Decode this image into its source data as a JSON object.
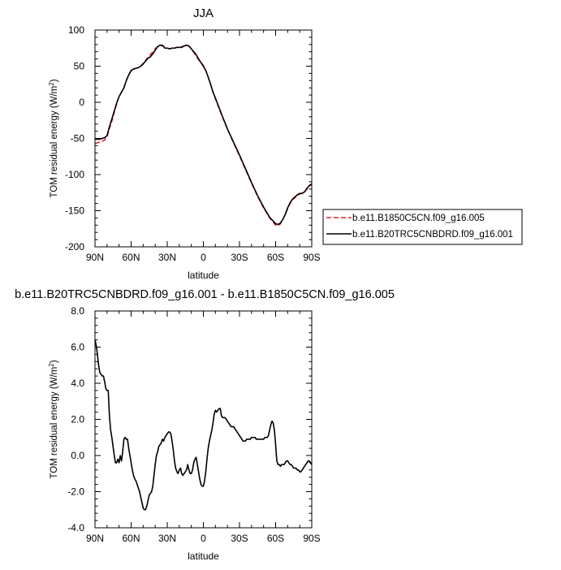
{
  "chart_data": [
    {
      "type": "line",
      "title": "JJA",
      "xlabel": "latitude",
      "ylabel": "TOM residual energy (W/m",
      "ylabel_sup": "2",
      "ylabel_close": ")",
      "xlim": [
        90,
        -90
      ],
      "ylim": [
        -200,
        100
      ],
      "xticks": [
        90,
        60,
        30,
        0,
        -30,
        -60,
        -90
      ],
      "xtick_labels": [
        "90N",
        "60N",
        "30N",
        "0",
        "30S",
        "60S",
        "90S"
      ],
      "yticks": [
        -200,
        -150,
        -100,
        -50,
        0,
        50,
        100
      ],
      "ytick_labels": [
        "-200",
        "-150",
        "-100",
        "-50",
        "0",
        "50",
        "100"
      ],
      "grid": false,
      "legend_position": "right",
      "series": [
        {
          "name": "b.e11.B1850C5CN.f09_g16.005",
          "color": "#e8242c",
          "style": "dashed",
          "x": [
            90,
            88,
            86,
            84,
            82,
            80,
            78,
            76,
            74,
            72,
            70,
            68,
            66,
            64,
            62,
            60,
            58,
            56,
            54,
            52,
            50,
            48,
            46,
            44,
            42,
            40,
            38,
            36,
            34,
            32,
            30,
            28,
            26,
            24,
            22,
            20,
            18,
            16,
            14,
            12,
            10,
            8,
            6,
            4,
            2,
            0,
            -2,
            -4,
            -6,
            -8,
            -10,
            -15,
            -20,
            -25,
            -30,
            -35,
            -40,
            -45,
            -50,
            -55,
            -60,
            -62,
            -64,
            -66,
            -68,
            -70,
            -72,
            -74,
            -76,
            -78,
            -80,
            -82,
            -84,
            -86,
            -88,
            -90
          ],
          "y": [
            -57,
            -56,
            -55,
            -54,
            -52,
            -48,
            -36,
            -26,
            -14,
            -2,
            8,
            14,
            20,
            30,
            38,
            43,
            46,
            47,
            48,
            50,
            54,
            58,
            62,
            66,
            70,
            74,
            77,
            79,
            78,
            76,
            75,
            74,
            75,
            75,
            76,
            76,
            77,
            78,
            79,
            78,
            74,
            69,
            64,
            59,
            55,
            51,
            44,
            35,
            25,
            14,
            5,
            -17,
            -37,
            -56,
            -74,
            -93,
            -112,
            -130,
            -146,
            -160,
            -170,
            -171,
            -168,
            -162,
            -155,
            -147,
            -140,
            -135,
            -132,
            -129,
            -127,
            -126,
            -124,
            -120,
            -116,
            -114
          ]
        },
        {
          "name": "b.e11.B20TRC5CNBDRD.f09_g16.001",
          "color": "#000000",
          "style": "solid",
          "x": [
            90,
            88,
            86,
            84,
            82,
            80,
            78,
            76,
            74,
            72,
            70,
            68,
            66,
            64,
            62,
            60,
            58,
            56,
            54,
            52,
            50,
            48,
            46,
            44,
            42,
            40,
            38,
            36,
            34,
            32,
            30,
            28,
            26,
            24,
            22,
            20,
            18,
            16,
            14,
            12,
            10,
            8,
            6,
            4,
            2,
            0,
            -2,
            -4,
            -6,
            -8,
            -10,
            -15,
            -20,
            -25,
            -30,
            -35,
            -40,
            -45,
            -50,
            -55,
            -60,
            -62,
            -64,
            -66,
            -68,
            -70,
            -72,
            -74,
            -76,
            -78,
            -80,
            -82,
            -84,
            -86,
            -88,
            -90
          ],
          "y": [
            -51,
            -51,
            -51,
            -50,
            -49,
            -46,
            -34,
            -23,
            -12,
            -1,
            8,
            14,
            20,
            30,
            38,
            44,
            46,
            47,
            48,
            50,
            53,
            57,
            61,
            63,
            67,
            72,
            77,
            79,
            79,
            75,
            75,
            74,
            75,
            75,
            76,
            76,
            76,
            78,
            79,
            78,
            74,
            70,
            66,
            60,
            55,
            50,
            44,
            35,
            25,
            14,
            6,
            -16,
            -37,
            -55,
            -73,
            -92,
            -111,
            -129,
            -145,
            -159,
            -168,
            -169,
            -167,
            -162,
            -155,
            -146,
            -139,
            -134,
            -131,
            -128,
            -126,
            -126,
            -124,
            -119,
            -115,
            -113
          ]
        }
      ]
    },
    {
      "type": "line",
      "title": "b.e11.B20TRC5CNBDRD.f09_g16.001 - b.e11.B1850C5CN.f09_g16.005",
      "xlabel": "latitude",
      "ylabel": "TOM residual energy (W/m",
      "ylabel_sup": "2",
      "ylabel_close": ")",
      "xlim": [
        90,
        -90
      ],
      "ylim": [
        -4,
        8
      ],
      "xticks": [
        90,
        60,
        30,
        0,
        -30,
        -60,
        -90
      ],
      "xtick_labels": [
        "90N",
        "60N",
        "30N",
        "0",
        "30S",
        "60S",
        "90S"
      ],
      "yticks": [
        -4,
        -2,
        0,
        2,
        4,
        6,
        8
      ],
      "ytick_labels": [
        "-4.0",
        "-2.0",
        "0.0",
        "2.0",
        "4.0",
        "6.0",
        "8.0"
      ],
      "grid": false,
      "series": [
        {
          "color": "#000000",
          "style": "solid",
          "x": [
            90,
            89,
            88,
            87,
            86,
            85,
            84,
            83,
            82,
            81,
            80,
            79,
            78,
            77,
            76,
            75,
            74,
            73,
            72,
            71,
            70,
            69,
            68,
            67,
            66,
            65,
            64,
            63,
            62,
            61,
            60,
            59,
            58,
            57,
            56,
            55,
            54,
            53,
            52,
            51,
            50,
            49,
            48,
            47,
            46,
            45,
            44,
            43,
            42,
            41,
            40,
            39,
            38,
            37,
            36,
            35,
            34,
            33,
            32,
            31,
            30,
            29,
            28,
            27,
            26,
            25,
            24,
            23,
            22,
            21,
            20,
            19,
            18,
            17,
            16,
            15,
            14,
            13,
            12,
            11,
            10,
            9,
            8,
            7,
            6,
            5,
            4,
            3,
            2,
            1,
            0,
            -1,
            -2,
            -3,
            -4,
            -5,
            -6,
            -7,
            -8,
            -9,
            -10,
            -11,
            -12,
            -13,
            -14,
            -15,
            -16,
            -17,
            -18,
            -19,
            -20,
            -21,
            -22,
            -23,
            -24,
            -25,
            -26,
            -27,
            -28,
            -29,
            -30,
            -31,
            -32,
            -33,
            -34,
            -35,
            -36,
            -37,
            -38,
            -39,
            -40,
            -41,
            -42,
            -43,
            -44,
            -45,
            -46,
            -47,
            -48,
            -49,
            -50,
            -51,
            -52,
            -53,
            -54,
            -55,
            -56,
            -57,
            -58,
            -59,
            -60,
            -61,
            -62,
            -63,
            -64,
            -65,
            -66,
            -67,
            -68,
            -69,
            -70,
            -71,
            -72,
            -73,
            -74,
            -75,
            -76,
            -77,
            -78,
            -79,
            -80,
            -81,
            -82,
            -83,
            -84,
            -85,
            -86,
            -87,
            -88,
            -89,
            -90
          ],
          "y": [
            6.4,
            6.1,
            5.6,
            5.0,
            4.6,
            4.5,
            4.4,
            4.4,
            4.1,
            3.7,
            3.6,
            3.6,
            2.2,
            1.4,
            1.0,
            0.5,
            0.0,
            -0.4,
            -0.4,
            -0.2,
            -0.4,
            0.0,
            -0.3,
            0.2,
            0.9,
            1.0,
            0.9,
            0.9,
            0.4,
            0.0,
            -0.4,
            -0.8,
            -1.1,
            -1.3,
            -1.4,
            -1.6,
            -1.8,
            -2.0,
            -2.3,
            -2.6,
            -2.9,
            -3.0,
            -3.0,
            -2.8,
            -2.5,
            -2.2,
            -2.1,
            -2.0,
            -1.7,
            -1.1,
            -0.5,
            0.0,
            0.2,
            0.5,
            0.6,
            0.7,
            0.9,
            0.8,
            1.0,
            1.1,
            1.2,
            1.3,
            1.3,
            1.2,
            0.8,
            0.3,
            -0.3,
            -0.7,
            -0.9,
            -1.0,
            -0.8,
            -0.7,
            -1.0,
            -1.1,
            -1.0,
            -0.9,
            -0.8,
            -0.5,
            -0.8,
            -1.0,
            -1.0,
            -0.8,
            -0.4,
            -0.2,
            -0.1,
            -0.5,
            -0.9,
            -1.3,
            -1.6,
            -1.7,
            -1.7,
            -1.4,
            -0.9,
            -0.2,
            0.4,
            0.8,
            1.1,
            1.4,
            1.8,
            2.3,
            2.5,
            2.4,
            2.5,
            2.6,
            2.6,
            2.2,
            2.1,
            2.1,
            2.1,
            2.0,
            1.9,
            1.8,
            1.7,
            1.6,
            1.6,
            1.6,
            1.5,
            1.4,
            1.3,
            1.2,
            1.1,
            1.0,
            0.9,
            0.8,
            0.8,
            0.8,
            0.9,
            0.9,
            0.9,
            0.9,
            1.0,
            1.0,
            1.0,
            1.0,
            0.9,
            0.9,
            0.9,
            0.9,
            0.9,
            0.9,
            0.9,
            1.0,
            1.0,
            1.0,
            1.1,
            1.4,
            1.7,
            1.9,
            1.8,
            1.4,
            0.6,
            -0.3,
            -0.5,
            -0.5,
            -0.6,
            -0.5,
            -0.5,
            -0.5,
            -0.4,
            -0.3,
            -0.3,
            -0.4,
            -0.5,
            -0.5,
            -0.6,
            -0.7,
            -0.7,
            -0.7,
            -0.8,
            -0.8,
            -0.9,
            -0.9,
            -0.8,
            -0.7,
            -0.6,
            -0.5,
            -0.4,
            -0.3,
            -0.3,
            -0.4,
            -0.5
          ]
        }
      ]
    }
  ]
}
